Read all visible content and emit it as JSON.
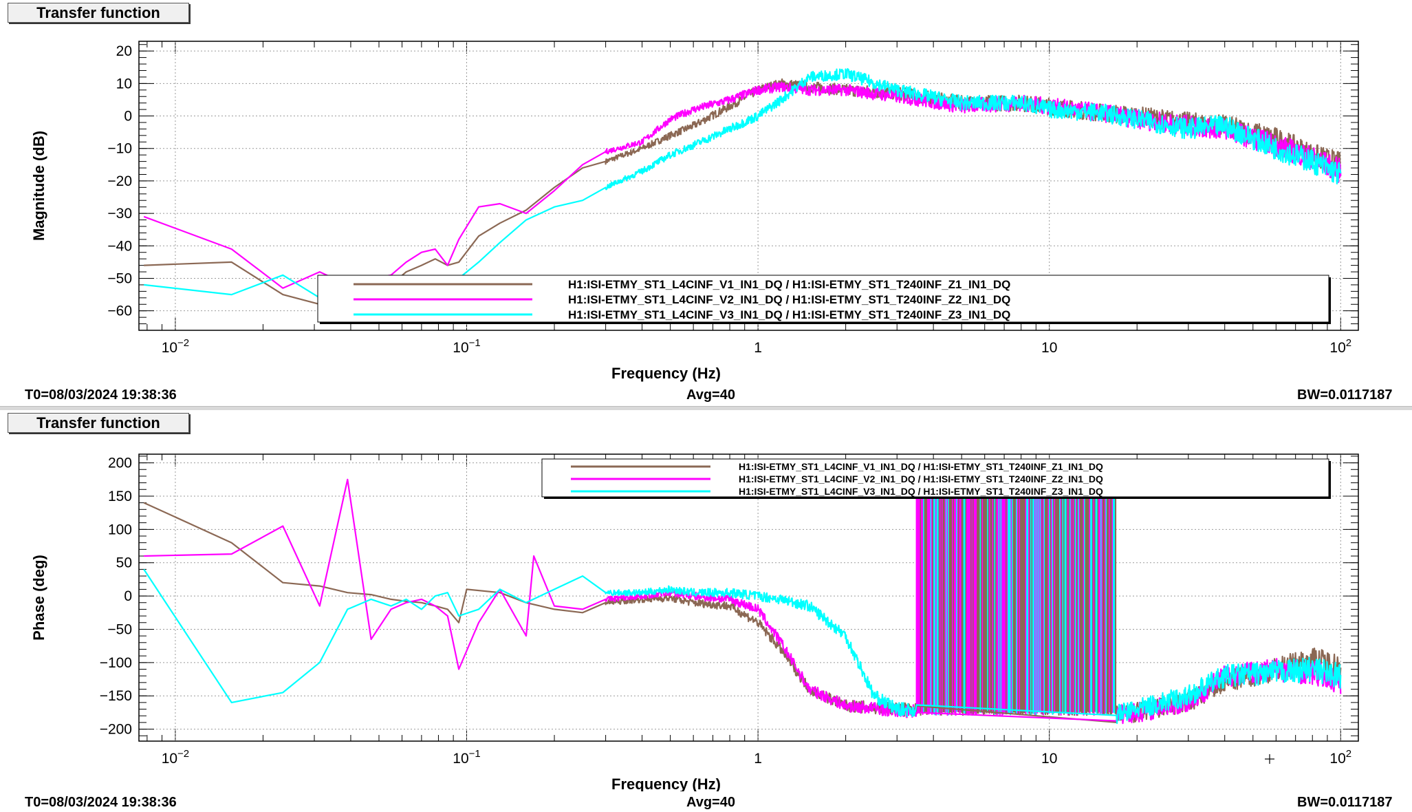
{
  "panels": [
    {
      "title": "Transfer function",
      "footer": {
        "t0": "T0=08/03/2024 19:38:36",
        "avg": "Avg=40",
        "bw": "BW=0.0117187"
      }
    },
    {
      "title": "Transfer function",
      "footer": {
        "t0": "T0=08/03/2024 19:38:36",
        "avg": "Avg=40",
        "bw": "BW=0.0117187"
      }
    }
  ],
  "chart_data": [
    {
      "type": "line",
      "xlabel": "Frequency (Hz)",
      "ylabel": "Magnitude (dB)",
      "xscale": "log",
      "xlim": [
        0.0075,
        115
      ],
      "ylim": [
        -66,
        23
      ],
      "yticks": [
        20,
        10,
        0,
        -10,
        -20,
        -30,
        -40,
        -50,
        -60
      ],
      "xticks": [
        {
          "value": 0.01,
          "base": "10",
          "exp": "−2"
        },
        {
          "value": 0.1,
          "base": "10",
          "exp": "−1"
        },
        {
          "value": 1,
          "base": "1",
          "exp": ""
        },
        {
          "value": 10,
          "base": "10",
          "exp": ""
        },
        {
          "value": 100,
          "base": "10",
          "exp": "2"
        }
      ],
      "grid": true,
      "legend_position": "bottom-right",
      "series": [
        {
          "name": "H1:ISI-ETMY_ST1_L4CINF_V1_IN1_DQ / H1:ISI-ETMY_ST1_T240INF_Z1_IN1_DQ",
          "color": "#8b6854",
          "x": [
            0.0078,
            0.0156,
            0.0234,
            0.0313,
            0.039,
            0.047,
            0.055,
            0.062,
            0.07,
            0.078,
            0.086,
            0.094,
            0.11,
            0.13,
            0.16,
            0.2,
            0.25,
            0.3,
            0.4,
            0.5,
            0.6,
            0.8,
            1.0,
            1.2,
            1.5,
            2.0,
            3.0,
            5.0,
            8.0,
            10,
            15,
            20,
            30,
            40,
            60,
            80,
            100
          ],
          "y": [
            -46,
            -45,
            -55,
            -58,
            -57,
            -56,
            -52,
            -48,
            -46,
            -44,
            -46,
            -45,
            -37,
            -33,
            -29,
            -22,
            -16,
            -14,
            -10,
            -6,
            -3,
            3,
            8,
            10,
            9,
            8,
            7,
            4,
            4,
            3,
            1,
            0,
            -2,
            -3,
            -7,
            -12,
            -15
          ]
        },
        {
          "name": "H1:ISI-ETMY_ST1_L4CINF_V2_IN1_DQ / H1:ISI-ETMY_ST1_T240INF_Z2_IN1_DQ",
          "color": "#ff00ff",
          "x": [
            0.0078,
            0.0156,
            0.0234,
            0.0313,
            0.039,
            0.047,
            0.055,
            0.062,
            0.07,
            0.078,
            0.086,
            0.094,
            0.11,
            0.13,
            0.16,
            0.2,
            0.25,
            0.3,
            0.4,
            0.5,
            0.6,
            0.8,
            1.0,
            1.2,
            1.5,
            2.0,
            3.0,
            5.0,
            8.0,
            10,
            15,
            20,
            30,
            40,
            60,
            80,
            100
          ],
          "y": [
            -31,
            -41,
            -53,
            -48,
            -52,
            -50,
            -49,
            -45,
            -42,
            -41,
            -46,
            -38,
            -28,
            -27,
            -30,
            -23,
            -15,
            -11,
            -8,
            -1,
            2,
            5,
            8,
            9,
            8,
            8,
            6,
            3,
            4,
            3,
            1,
            -1,
            -3,
            -4,
            -9,
            -13,
            -17
          ]
        },
        {
          "name": "H1:ISI-ETMY_ST1_L4CINF_V3_IN1_DQ / H1:ISI-ETMY_ST1_T240INF_Z3_IN1_DQ",
          "color": "#00ffff",
          "x": [
            0.0078,
            0.0156,
            0.0234,
            0.0313,
            0.039,
            0.047,
            0.055,
            0.062,
            0.07,
            0.078,
            0.086,
            0.094,
            0.11,
            0.13,
            0.16,
            0.2,
            0.25,
            0.3,
            0.4,
            0.5,
            0.6,
            0.8,
            1.0,
            1.2,
            1.5,
            2.0,
            3.0,
            5.0,
            8.0,
            10,
            15,
            20,
            30,
            40,
            60,
            80,
            100
          ],
          "y": [
            -52,
            -55,
            -49,
            -56,
            -60,
            -58,
            -59,
            -56,
            -53,
            -52,
            -51,
            -50,
            -45,
            -39,
            -32,
            -28,
            -26,
            -22,
            -17,
            -12,
            -9,
            -4,
            0,
            5,
            12,
            13,
            8,
            4,
            4,
            2,
            1,
            -1,
            -4,
            -3,
            -10,
            -14,
            -18
          ]
        }
      ]
    },
    {
      "type": "line",
      "xlabel": "Frequency (Hz)",
      "ylabel": "Phase (deg)",
      "xscale": "log",
      "xlim": [
        0.0075,
        115
      ],
      "ylim": [
        -218,
        213
      ],
      "yticks": [
        200,
        150,
        100,
        50,
        0,
        -50,
        -100,
        -150,
        -200
      ],
      "xticks": [
        {
          "value": 0.01,
          "base": "10",
          "exp": "−2"
        },
        {
          "value": 0.1,
          "base": "10",
          "exp": "−1"
        },
        {
          "value": 1,
          "base": "1",
          "exp": ""
        },
        {
          "value": 10,
          "base": "10",
          "exp": ""
        },
        {
          "value": 100,
          "base": "10",
          "exp": "2"
        }
      ],
      "grid": true,
      "legend_position": "top-right",
      "wrap_band": {
        "from": 3.5,
        "to": 17
      },
      "series": [
        {
          "name": "H1:ISI-ETMY_ST1_L4CINF_V1_IN1_DQ / H1:ISI-ETMY_ST1_T240INF_Z1_IN1_DQ",
          "color": "#8b6854",
          "x": [
            0.0078,
            0.0156,
            0.0234,
            0.0313,
            0.039,
            0.047,
            0.055,
            0.062,
            0.07,
            0.078,
            0.086,
            0.094,
            0.1,
            0.13,
            0.16,
            0.2,
            0.25,
            0.3,
            0.4,
            0.5,
            0.6,
            0.8,
            1.0,
            1.2,
            1.5,
            2.0,
            3.0,
            5.0,
            8.0,
            17,
            20,
            30,
            40,
            60,
            80,
            100
          ],
          "y": [
            140,
            80,
            20,
            15,
            5,
            2,
            -5,
            -8,
            -10,
            -15,
            -20,
            -40,
            10,
            5,
            -10,
            -20,
            -25,
            -10,
            -5,
            -3,
            -10,
            -15,
            -40,
            -80,
            -140,
            -165,
            -170,
            -175,
            -175,
            -178,
            -175,
            -160,
            -130,
            -110,
            -95,
            -105
          ]
        },
        {
          "name": "H1:ISI-ETMY_ST1_L4CINF_V2_IN1_DQ / H1:ISI-ETMY_ST1_T240INF_Z2_IN1_DQ",
          "color": "#ff00ff",
          "x": [
            0.0078,
            0.0156,
            0.0234,
            0.0313,
            0.039,
            0.047,
            0.055,
            0.062,
            0.07,
            0.078,
            0.086,
            0.094,
            0.11,
            0.13,
            0.16,
            0.17,
            0.2,
            0.25,
            0.3,
            0.4,
            0.5,
            0.6,
            0.8,
            1.0,
            1.2,
            1.5,
            2.0,
            3.0,
            5.0,
            8.0,
            17,
            20,
            30,
            40,
            60,
            80,
            100
          ],
          "y": [
            60,
            63,
            105,
            -15,
            175,
            -65,
            -20,
            -10,
            -5,
            -15,
            -30,
            -110,
            -40,
            10,
            -60,
            60,
            -15,
            -20,
            -5,
            0,
            5,
            0,
            -5,
            -20,
            -70,
            -140,
            -165,
            -172,
            -175,
            -178,
            -178,
            -175,
            -160,
            -120,
            -110,
            -115,
            -130
          ]
        },
        {
          "name": "H1:ISI-ETMY_ST1_L4CINF_V3_IN1_DQ / H1:ISI-ETMY_ST1_T240INF_Z3_IN1_DQ",
          "color": "#00ffff",
          "x": [
            0.0078,
            0.0156,
            0.0234,
            0.0313,
            0.039,
            0.047,
            0.055,
            0.062,
            0.07,
            0.078,
            0.086,
            0.094,
            0.11,
            0.13,
            0.16,
            0.2,
            0.25,
            0.3,
            0.4,
            0.5,
            0.6,
            0.8,
            1.0,
            1.2,
            1.5,
            2.0,
            2.5,
            3.0,
            5.0,
            8.0,
            17,
            20,
            30,
            40,
            60,
            80,
            100
          ],
          "y": [
            40,
            -160,
            -145,
            -100,
            -20,
            -5,
            -15,
            -5,
            -20,
            0,
            5,
            -30,
            -20,
            10,
            -10,
            10,
            30,
            5,
            5,
            10,
            5,
            5,
            0,
            -5,
            -15,
            -60,
            -150,
            -170,
            -175,
            -178,
            -178,
            -170,
            -150,
            -120,
            -115,
            -110,
            -120
          ]
        }
      ]
    }
  ]
}
